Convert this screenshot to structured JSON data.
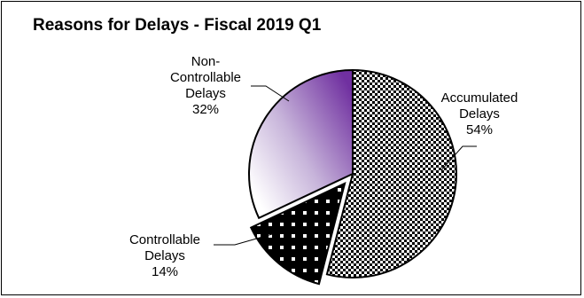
{
  "chart_data": {
    "type": "pie",
    "title": "Reasons for Delays - Fiscal 2019 Q1",
    "slices": [
      {
        "label_lines": [
          "Accumulated",
          "Delays"
        ],
        "percent_label": "54%",
        "value": 54,
        "fill": "checker",
        "exploded": false
      },
      {
        "label_lines": [
          "Controllable",
          "Delays"
        ],
        "percent_label": "14%",
        "value": 14,
        "fill": "dots",
        "exploded": true
      },
      {
        "label_lines": [
          "Non-",
          "Controllable",
          "Delays"
        ],
        "percent_label": "32%",
        "value": 32,
        "fill": "gradient",
        "exploded": false
      }
    ],
    "start_direction": "12 o'clock",
    "direction": "clockwise",
    "legend": "none",
    "colors": {
      "gradient_dark": "#7030a0",
      "gradient_light": "#ffffff",
      "dots_bg": "#000000",
      "dots_fg": "#ffffff",
      "checker_dark": "#000000",
      "checker_light": "#ffffff"
    }
  }
}
